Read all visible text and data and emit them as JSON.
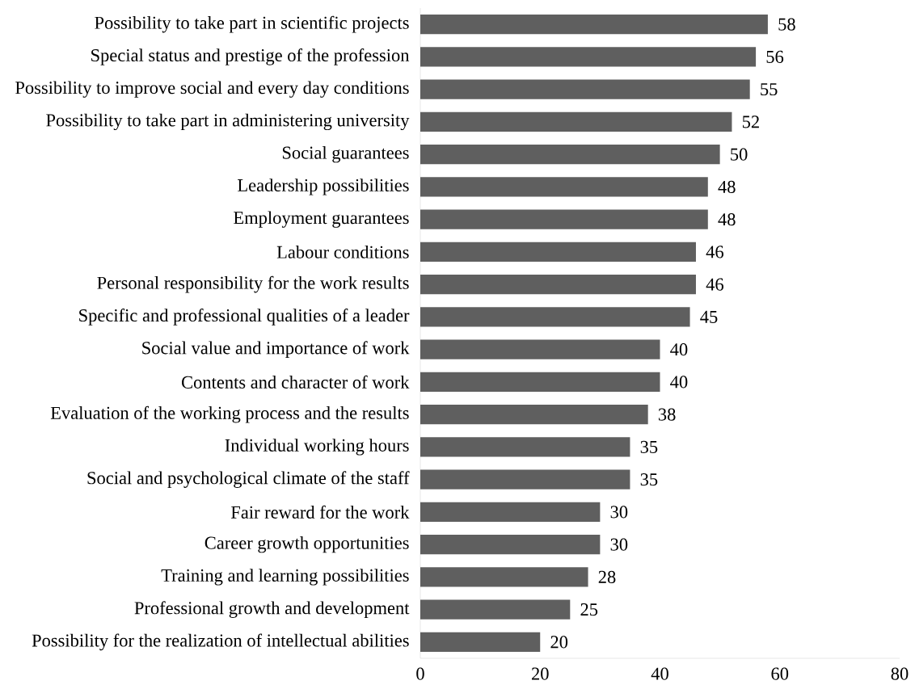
{
  "chart_data": {
    "type": "bar",
    "orientation": "horizontal",
    "categories": [
      "Possibility to take part in scientific projects",
      "Special status and prestige of the profession",
      "Possibility to improve social and every day conditions",
      "Possibility to take part in administering university",
      "Social guarantees",
      "Leadership possibilities",
      "Employment guarantees",
      "Labour conditions",
      "Personal responsibility for the work results",
      "Specific and professional qualities of a leader",
      "Social value and importance of work",
      "Contents and character of work",
      "Evaluation of the working process and the results",
      "Individual working hours",
      "Social and psychological climate of the staff",
      "Fair reward for the work",
      "Career growth opportunities",
      "Training and learning possibilities",
      "Professional growth and development",
      "Possibility for the realization of intellectual abilities"
    ],
    "values": [
      58,
      56,
      55,
      52,
      50,
      48,
      48,
      46,
      46,
      45,
      40,
      40,
      38,
      35,
      35,
      30,
      30,
      28,
      25,
      20
    ],
    "color": "#5f5f5f",
    "xlim": [
      0,
      80
    ],
    "xticks": [
      0,
      20,
      40,
      60,
      80
    ],
    "data_labels": true
  }
}
